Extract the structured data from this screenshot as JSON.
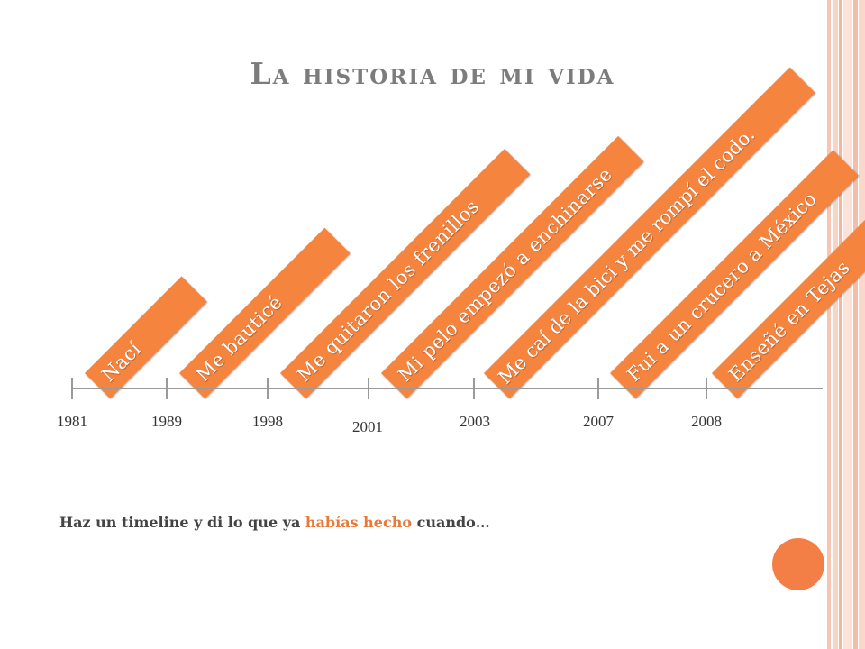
{
  "title": "La historia de mi vida",
  "events": [
    {
      "year": "1981",
      "label": "Nací"
    },
    {
      "year": "1989",
      "label": "Me bauticé"
    },
    {
      "year": "1998",
      "label": "Me quitaron los frenillos"
    },
    {
      "year": "2001",
      "label": "Mi pelo empezó a enchinarse"
    },
    {
      "year": "2003",
      "label": "Me caí de la bici y me rompí el codo."
    },
    {
      "year": "2007",
      "label": "Fui a un crucero a México"
    },
    {
      "year": "2008",
      "label": "Enseñé en Tejas"
    }
  ],
  "prompt": {
    "before": "Haz un timeline y di lo que ya ",
    "highlight": "habías hecho",
    "after": " cuando…"
  },
  "colors": {
    "accent": "#f5843f",
    "title": "#7c7c7c",
    "timeline": "#9a9a9a",
    "highlight": "#e8793a"
  }
}
